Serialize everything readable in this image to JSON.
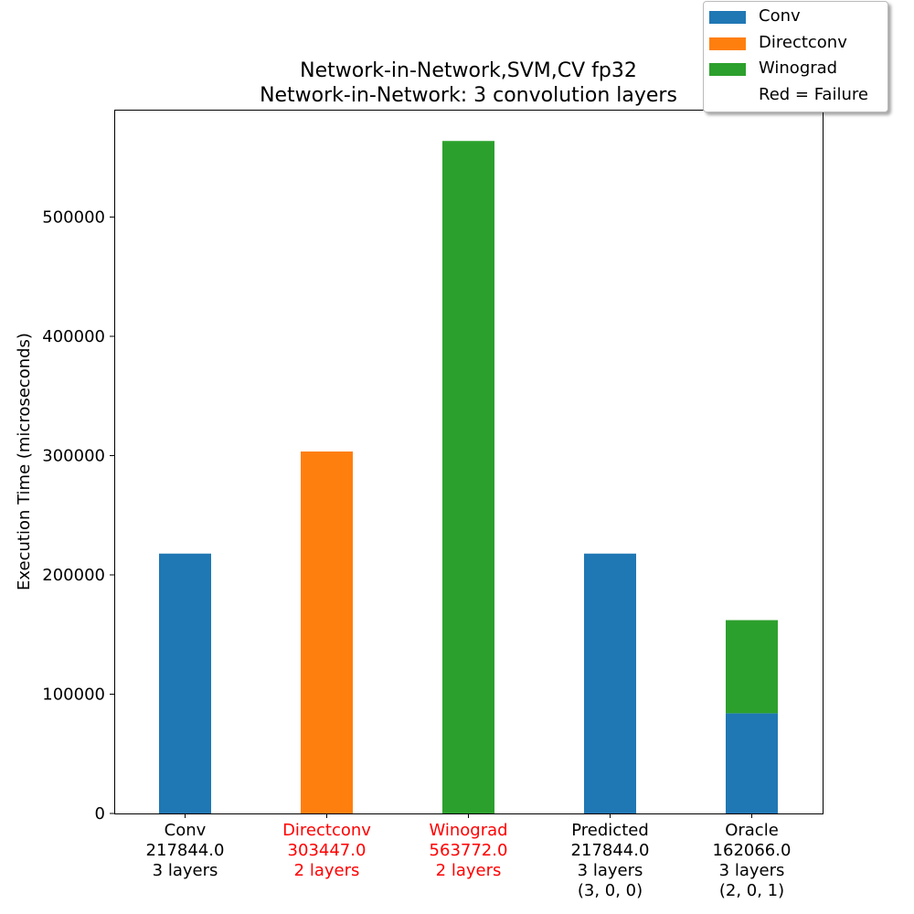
{
  "chart_data": {
    "type": "bar",
    "stacked": true,
    "title": "Network-in-Network,SVM,CV fp32",
    "subtitle": "Network-in-Network: 3 convolution layers",
    "ylabel": "Execution Time (microseconds)",
    "xlabel": "",
    "ylim": [
      0,
      590000
    ],
    "yticks": [
      0,
      100000,
      200000,
      300000,
      400000,
      500000
    ],
    "grid": false,
    "legend_placement": "top-right",
    "categories": [
      {
        "lines": [
          "Conv",
          "217844.0",
          "3 layers"
        ],
        "failure": false
      },
      {
        "lines": [
          "Directconv",
          "303447.0",
          "2 layers"
        ],
        "failure": true
      },
      {
        "lines": [
          "Winograd",
          "563772.0",
          "2 layers"
        ],
        "failure": true
      },
      {
        "lines": [
          "Predicted",
          "217844.0",
          "3 layers",
          "(3, 0, 0)"
        ],
        "failure": false
      },
      {
        "lines": [
          "Oracle",
          "162066.0",
          "3 layers",
          "(2, 0, 1)"
        ],
        "failure": false
      }
    ],
    "series": [
      {
        "name": "Conv",
        "color": "#1f77b4",
        "values": [
          217844,
          0,
          0,
          217844,
          84000
        ]
      },
      {
        "name": "Directconv",
        "color": "#ff7f0e",
        "values": [
          0,
          303447,
          0,
          0,
          0
        ]
      },
      {
        "name": "Winograd",
        "color": "#2ca02c",
        "values": [
          0,
          0,
          563772,
          0,
          78066
        ]
      }
    ],
    "legend": [
      {
        "label": "Conv",
        "color": "#1f77b4"
      },
      {
        "label": "Directconv",
        "color": "#ff7f0e"
      },
      {
        "label": "Winograd",
        "color": "#2ca02c"
      },
      {
        "label": "Red = Failure",
        "color": ""
      }
    ],
    "failure_color": "#ff0000"
  }
}
